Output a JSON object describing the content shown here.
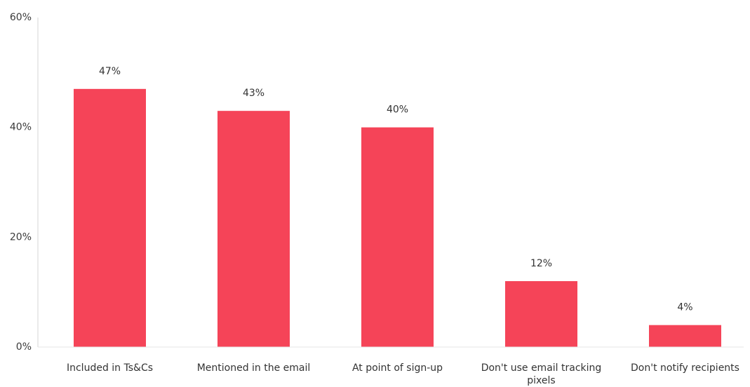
{
  "chart_data": {
    "type": "bar",
    "title": "",
    "xlabel": "",
    "ylabel": "",
    "categories": [
      "Included in Ts&Cs",
      "Mentioned in the email",
      "At point of sign-up",
      "Don't use email tracking pixels",
      "Don't notify recipients"
    ],
    "values": [
      47,
      43,
      40,
      12,
      4
    ],
    "value_labels": [
      "47%",
      "43%",
      "40%",
      "12%",
      "4%"
    ],
    "ylim": [
      0,
      60
    ],
    "y_ticks": [
      {
        "value": 0,
        "label": "0%"
      },
      {
        "value": 20,
        "label": "20%"
      },
      {
        "value": 40,
        "label": "40%"
      },
      {
        "value": 60,
        "label": "60%"
      }
    ],
    "bar_color": "#f54458",
    "grid": false,
    "legend": "none"
  }
}
